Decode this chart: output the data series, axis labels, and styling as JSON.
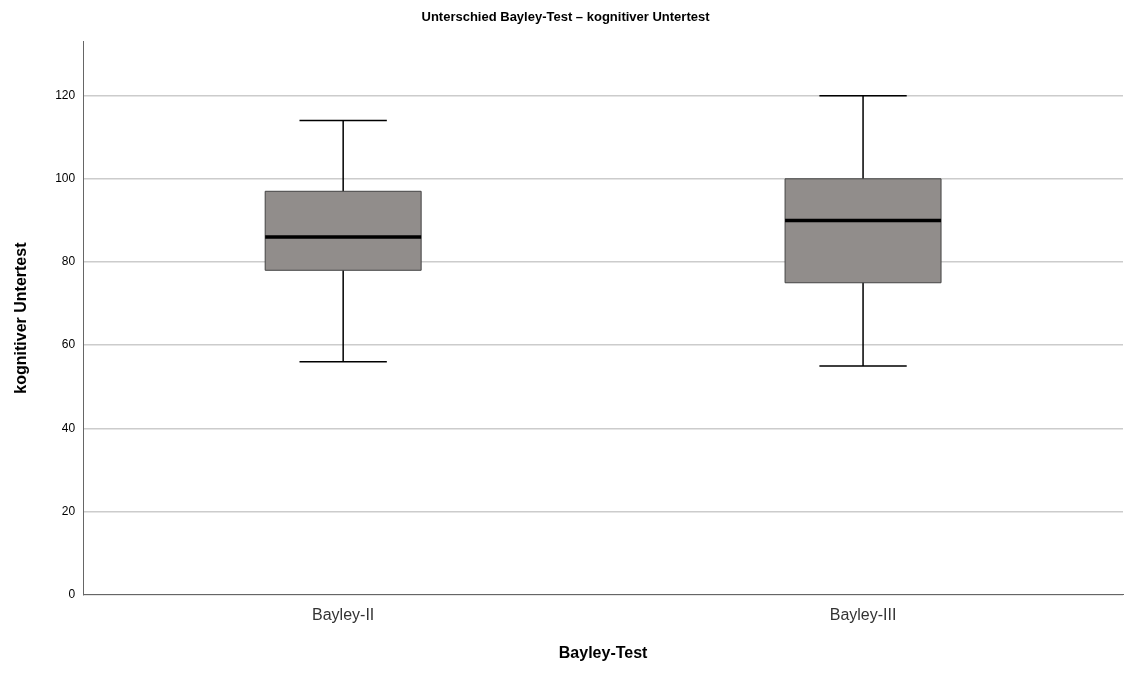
{
  "chart_data": {
    "type": "box",
    "title": "Unterschied Bayley-Test – kognitiver Untertest",
    "xlabel": "Bayley-Test",
    "ylabel": "kognitiver Untertest",
    "categories": [
      "Bayley-II",
      "Bayley-III"
    ],
    "boxes": [
      {
        "low": 56,
        "q1": 78,
        "median": 86,
        "q3": 97,
        "high": 114
      },
      {
        "low": 55,
        "q1": 75,
        "median": 90,
        "q3": 100,
        "high": 120
      }
    ],
    "color": "#918d8b",
    "ylim": [
      0,
      133
    ],
    "yticks": [
      0,
      20,
      40,
      60,
      80,
      100,
      120
    ],
    "grid": "y",
    "legend": false
  }
}
